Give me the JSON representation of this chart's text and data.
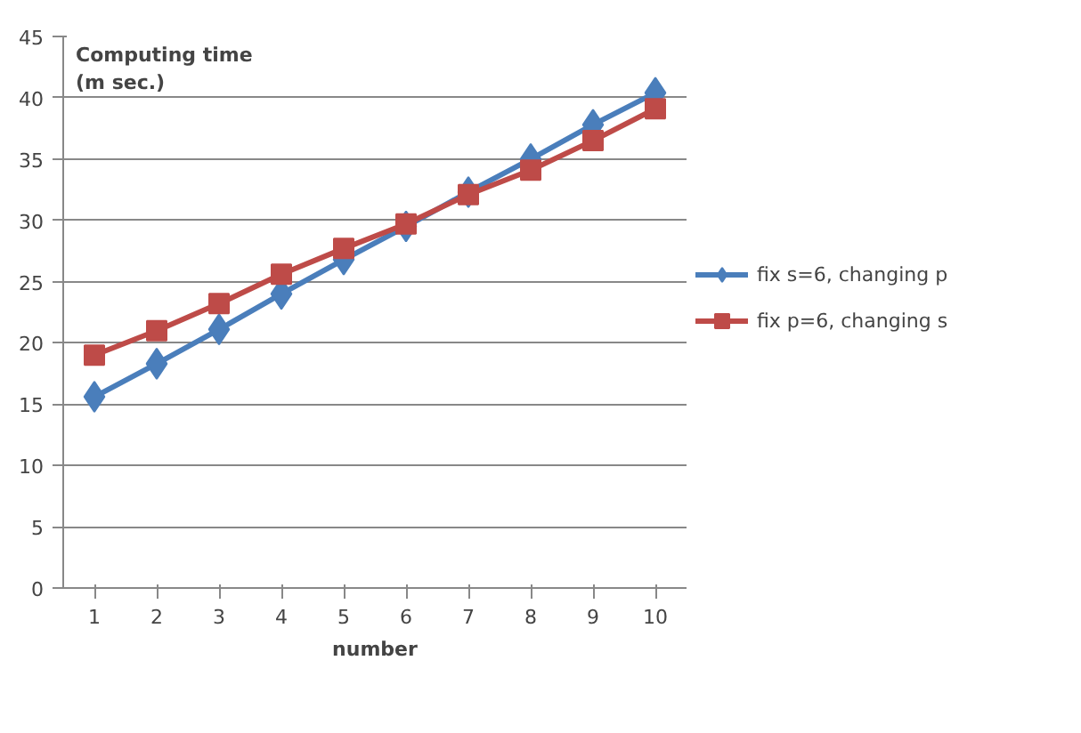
{
  "chart_data": {
    "type": "line",
    "ylabel": "Computing time\n (m sec.)",
    "xlabel": "number",
    "categories": [
      "1",
      "2",
      "3",
      "4",
      "5",
      "6",
      "7",
      "8",
      "9",
      "10"
    ],
    "series": [
      {
        "name": "fix s=6, changing p",
        "color": "#4a7ebb",
        "marker": "diamond",
        "values": [
          15.6,
          18.3,
          21.1,
          24.0,
          26.8,
          29.5,
          32.3,
          35.0,
          37.8,
          40.4
        ]
      },
      {
        "name": "fix p=6, changing s",
        "color": "#be4b48",
        "marker": "square",
        "values": [
          19.0,
          21.0,
          23.2,
          25.6,
          27.7,
          29.7,
          32.1,
          34.1,
          36.5,
          39.1
        ]
      }
    ],
    "ylim": [
      0,
      45
    ],
    "yticks": [
      0,
      5,
      10,
      15,
      20,
      25,
      30,
      35,
      40,
      45
    ],
    "grid": "y",
    "legend": "right",
    "line_style": "solid"
  }
}
